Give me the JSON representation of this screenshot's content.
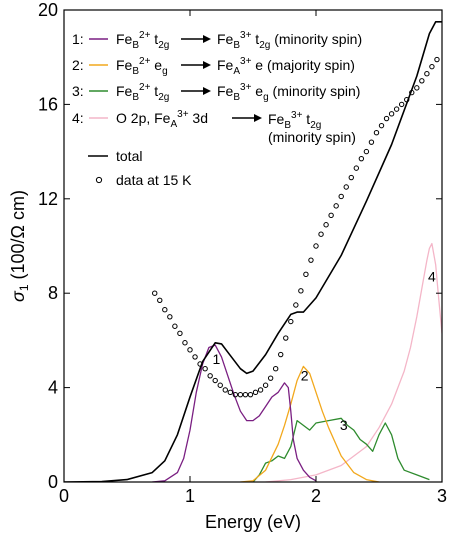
{
  "chart_data": {
    "type": "line",
    "xlabel": "Energy (eV)",
    "ylabel": "σ1 (100/Ω cm)",
    "xlim": [
      0,
      3
    ],
    "ylim": [
      0,
      20
    ],
    "xticks": [
      0,
      1,
      2,
      3
    ],
    "yticks": [
      0,
      4,
      8,
      12,
      16,
      20
    ],
    "grid": false,
    "legend_position": "top-left",
    "colors": {
      "s1": "#7a1f82",
      "s2": "#f2a81d",
      "s3": "#2e8b2e",
      "s4": "#f4b6c8",
      "total": "#000000",
      "data": "#000000"
    },
    "legend": [
      {
        "id": "s1",
        "num": "1:",
        "from": "Fe",
        "from_sup": "2+",
        "from_sub": "B",
        "from_orb": "t",
        "from_orb_sub": "2g",
        "to": "Fe",
        "to_sub": "B",
        "to_sup": "3+",
        "to_orb": "t",
        "to_orb_sub": "2g",
        "note": "(minority spin)"
      },
      {
        "id": "s2",
        "num": "2:",
        "from": "Fe",
        "from_sup": "2+",
        "from_sub": "B",
        "from_orb": "e",
        "from_orb_sub": "g",
        "to": "Fe",
        "to_sub": "A",
        "to_sup": "3+",
        "to_orb": "e",
        "to_orb_sub": "",
        "note": "(majority spin)"
      },
      {
        "id": "s3",
        "num": "3:",
        "from": "Fe",
        "from_sup": "2+",
        "from_sub": "B",
        "from_orb": "t",
        "from_orb_sub": "2g",
        "to": "Fe",
        "to_sub": "B",
        "to_sup": "3+",
        "to_orb": "e",
        "to_orb_sub": "g",
        "note": "(minority spin)"
      },
      {
        "id": "s4",
        "num": "4:",
        "from_text": "O 2p, Fe",
        "from_sub": "A",
        "from_sup": "3+",
        "from_tail": " 3d",
        "to": "Fe",
        "to_sub": "B",
        "to_sup": "3+",
        "to_orb": "t",
        "to_orb_sub": "2g",
        "note": "(minority spin)"
      }
    ],
    "legend_total": "total",
    "legend_data": "data at 15 K",
    "annotations": [
      {
        "label": "1",
        "x": 1.21,
        "y": 5.0
      },
      {
        "label": "2",
        "x": 1.91,
        "y": 4.3
      },
      {
        "label": "3",
        "x": 2.22,
        "y": 2.2
      },
      {
        "label": "4",
        "x": 2.92,
        "y": 8.5
      }
    ],
    "series": [
      {
        "id": "total",
        "name": "total",
        "x": [
          0,
          0.3,
          0.5,
          0.7,
          0.8,
          0.9,
          1.0,
          1.1,
          1.2,
          1.25,
          1.3,
          1.4,
          1.45,
          1.5,
          1.6,
          1.7,
          1.8,
          1.85,
          1.9,
          2.0,
          2.2,
          2.4,
          2.6,
          2.8,
          2.9,
          2.95,
          3.0
        ],
        "y": [
          0,
          0.02,
          0.1,
          0.4,
          0.9,
          2.0,
          3.6,
          5.1,
          5.9,
          5.85,
          5.5,
          4.8,
          4.6,
          4.7,
          5.4,
          6.3,
          7.1,
          7.2,
          7.2,
          7.8,
          9.6,
          11.9,
          14.3,
          17.2,
          19.0,
          19.5,
          19.5
        ]
      },
      {
        "id": "s1",
        "name": "1",
        "x": [
          0.7,
          0.8,
          0.9,
          0.95,
          1.0,
          1.05,
          1.1,
          1.15,
          1.2,
          1.25,
          1.3,
          1.35,
          1.4,
          1.45,
          1.5,
          1.55,
          1.6,
          1.65,
          1.7,
          1.75,
          1.78,
          1.8,
          1.82,
          1.85,
          1.9,
          1.95,
          2.0
        ],
        "y": [
          0,
          0.05,
          0.4,
          1.0,
          2.2,
          3.8,
          5.0,
          5.7,
          5.8,
          5.3,
          4.5,
          3.7,
          3.0,
          2.6,
          2.6,
          2.8,
          3.2,
          3.6,
          3.8,
          4.2,
          4.0,
          3.0,
          1.8,
          1.0,
          0.5,
          0.2,
          0.05
        ]
      },
      {
        "id": "s2",
        "name": "2",
        "x": [
          1.4,
          1.5,
          1.6,
          1.7,
          1.75,
          1.8,
          1.85,
          1.9,
          1.95,
          2.0,
          2.05,
          2.1,
          2.15,
          2.2,
          2.3,
          2.4,
          2.5
        ],
        "y": [
          0,
          0.05,
          0.5,
          1.6,
          2.4,
          3.3,
          4.3,
          4.9,
          4.6,
          3.8,
          3.0,
          2.3,
          1.7,
          1.1,
          0.4,
          0.1,
          0
        ]
      },
      {
        "id": "s3",
        "name": "3",
        "x": [
          1.5,
          1.55,
          1.6,
          1.65,
          1.7,
          1.75,
          1.8,
          1.85,
          1.9,
          1.95,
          2.0,
          2.1,
          2.2,
          2.25,
          2.3,
          2.35,
          2.4,
          2.45,
          2.5,
          2.55,
          2.6,
          2.65,
          2.7,
          2.8,
          2.9
        ],
        "y": [
          0,
          0.3,
          0.8,
          0.9,
          1.1,
          1.0,
          1.5,
          2.6,
          2.4,
          2.2,
          2.5,
          2.6,
          2.7,
          2.4,
          2.2,
          1.8,
          1.6,
          1.3,
          2.0,
          2.5,
          2.0,
          1.0,
          0.5,
          0.3,
          0.1
        ]
      },
      {
        "id": "s4",
        "name": "4",
        "x": [
          1.6,
          1.8,
          2.0,
          2.2,
          2.4,
          2.5,
          2.6,
          2.7,
          2.75,
          2.8,
          2.85,
          2.88,
          2.9,
          2.92,
          2.95,
          2.97,
          3.0
        ],
        "y": [
          0,
          0.1,
          0.3,
          0.7,
          1.5,
          2.3,
          3.3,
          4.7,
          5.7,
          7.0,
          8.5,
          9.4,
          9.9,
          10.1,
          9.2,
          8.0,
          6.3
        ]
      },
      {
        "id": "data",
        "name": "data at 15 K",
        "x": [
          0.72,
          0.76,
          0.8,
          0.84,
          0.88,
          0.92,
          0.96,
          1.0,
          1.04,
          1.08,
          1.12,
          1.16,
          1.2,
          1.24,
          1.28,
          1.32,
          1.36,
          1.4,
          1.44,
          1.48,
          1.52,
          1.56,
          1.6,
          1.64,
          1.68,
          1.72,
          1.76,
          1.8,
          1.84,
          1.88,
          1.92,
          1.96,
          2.0,
          2.04,
          2.08,
          2.12,
          2.16,
          2.2,
          2.24,
          2.28,
          2.32,
          2.36,
          2.4,
          2.44,
          2.48,
          2.52,
          2.56,
          2.6,
          2.64,
          2.68,
          2.72,
          2.76,
          2.8,
          2.84,
          2.88,
          2.92,
          2.96
        ],
        "y": [
          8.0,
          7.7,
          7.3,
          7.0,
          6.6,
          6.3,
          5.9,
          5.6,
          5.3,
          5.0,
          4.8,
          4.5,
          4.3,
          4.1,
          3.9,
          3.8,
          3.7,
          3.7,
          3.7,
          3.7,
          3.8,
          3.9,
          4.1,
          4.4,
          4.8,
          5.4,
          6.1,
          6.8,
          7.5,
          8.1,
          8.8,
          9.4,
          10.0,
          10.5,
          10.9,
          11.3,
          11.7,
          12.1,
          12.5,
          12.9,
          13.3,
          13.7,
          14.0,
          14.4,
          14.8,
          15.1,
          15.4,
          15.6,
          15.8,
          16.0,
          16.2,
          16.5,
          16.7,
          17.0,
          17.3,
          17.6,
          17.9
        ]
      }
    ]
  }
}
